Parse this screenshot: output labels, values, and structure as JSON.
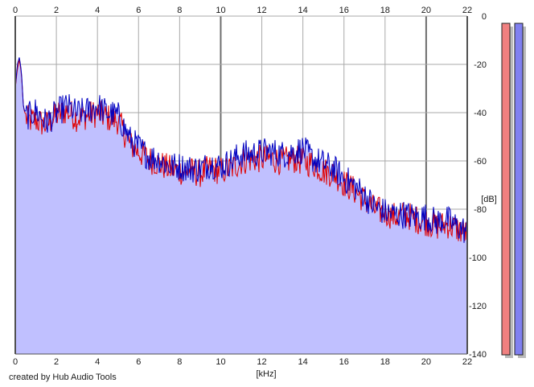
{
  "footer": {
    "credit": "created by Hub Audio Tools"
  },
  "meters": {
    "left_color": "#f08080",
    "right_color": "#8080f0"
  },
  "chart_data": {
    "type": "line",
    "title": "",
    "xlabel": "[kHz]",
    "ylabel": "[dB]",
    "xlim": [
      0,
      22
    ],
    "ylim": [
      -140,
      0
    ],
    "xticks": [
      0,
      2,
      4,
      6,
      8,
      10,
      12,
      14,
      16,
      18,
      20,
      22
    ],
    "yticks": [
      0,
      -20,
      -40,
      -60,
      -80,
      -100,
      -120,
      -140
    ],
    "major_x_gridlines": [
      0,
      10,
      20
    ],
    "grid": true,
    "fill_color": "#c0c0ff",
    "series": [
      {
        "color": "#e00000",
        "x": [
          0,
          0.1,
          0.2,
          0.3,
          0.4,
          0.5,
          0.7,
          1.0,
          1.5,
          2.0,
          2.5,
          3.0,
          3.5,
          4.0,
          4.5,
          5.0,
          5.3,
          5.6,
          6.0,
          6.5,
          7.0,
          7.5,
          8.0,
          8.5,
          9.0,
          9.5,
          10.0,
          10.5,
          11.0,
          11.5,
          12.0,
          12.5,
          13.0,
          13.5,
          14.0,
          14.5,
          15.0,
          15.5,
          16.0,
          16.5,
          17.0,
          17.5,
          18.0,
          18.5,
          19.0,
          19.5,
          20.0,
          20.5,
          21.0,
          21.5,
          22.0
        ],
        "y": [
          -30,
          -22,
          -18,
          -24,
          -38,
          -41,
          -42,
          -42,
          -44,
          -40,
          -38,
          -41,
          -40,
          -39,
          -41,
          -42,
          -47,
          -52,
          -55,
          -58,
          -60,
          -62,
          -63,
          -63,
          -64,
          -62,
          -63,
          -62,
          -59,
          -58,
          -58,
          -58,
          -59,
          -58,
          -59,
          -60,
          -63,
          -64,
          -68,
          -71,
          -75,
          -79,
          -80,
          -82,
          -81,
          -83,
          -84,
          -86,
          -85,
          -87,
          -89
        ]
      },
      {
        "color": "#0000c0",
        "x": [
          0,
          0.1,
          0.2,
          0.3,
          0.4,
          0.5,
          0.7,
          1.0,
          1.5,
          2.0,
          2.5,
          3.0,
          3.5,
          4.0,
          4.5,
          5.0,
          5.3,
          5.6,
          6.0,
          6.5,
          7.0,
          7.5,
          8.0,
          8.5,
          9.0,
          9.5,
          10.0,
          10.5,
          11.0,
          11.5,
          12.0,
          12.5,
          13.0,
          13.5,
          14.0,
          14.5,
          15.0,
          15.5,
          16.0,
          16.5,
          17.0,
          17.5,
          18.0,
          18.5,
          19.0,
          19.5,
          20.0,
          20.5,
          21.0,
          21.5,
          22.0
        ],
        "y": [
          -30,
          -20,
          -17,
          -23,
          -38,
          -40,
          -40,
          -38,
          -43,
          -39,
          -36,
          -39,
          -38,
          -36,
          -39,
          -40,
          -45,
          -50,
          -53,
          -57,
          -58,
          -61,
          -61,
          -62,
          -62,
          -60,
          -61,
          -59,
          -56,
          -56,
          -55,
          -55,
          -56,
          -55,
          -54,
          -58,
          -60,
          -62,
          -66,
          -69,
          -73,
          -78,
          -80,
          -81,
          -81,
          -82,
          -82,
          -84,
          -83,
          -86,
          -88
        ]
      }
    ]
  }
}
